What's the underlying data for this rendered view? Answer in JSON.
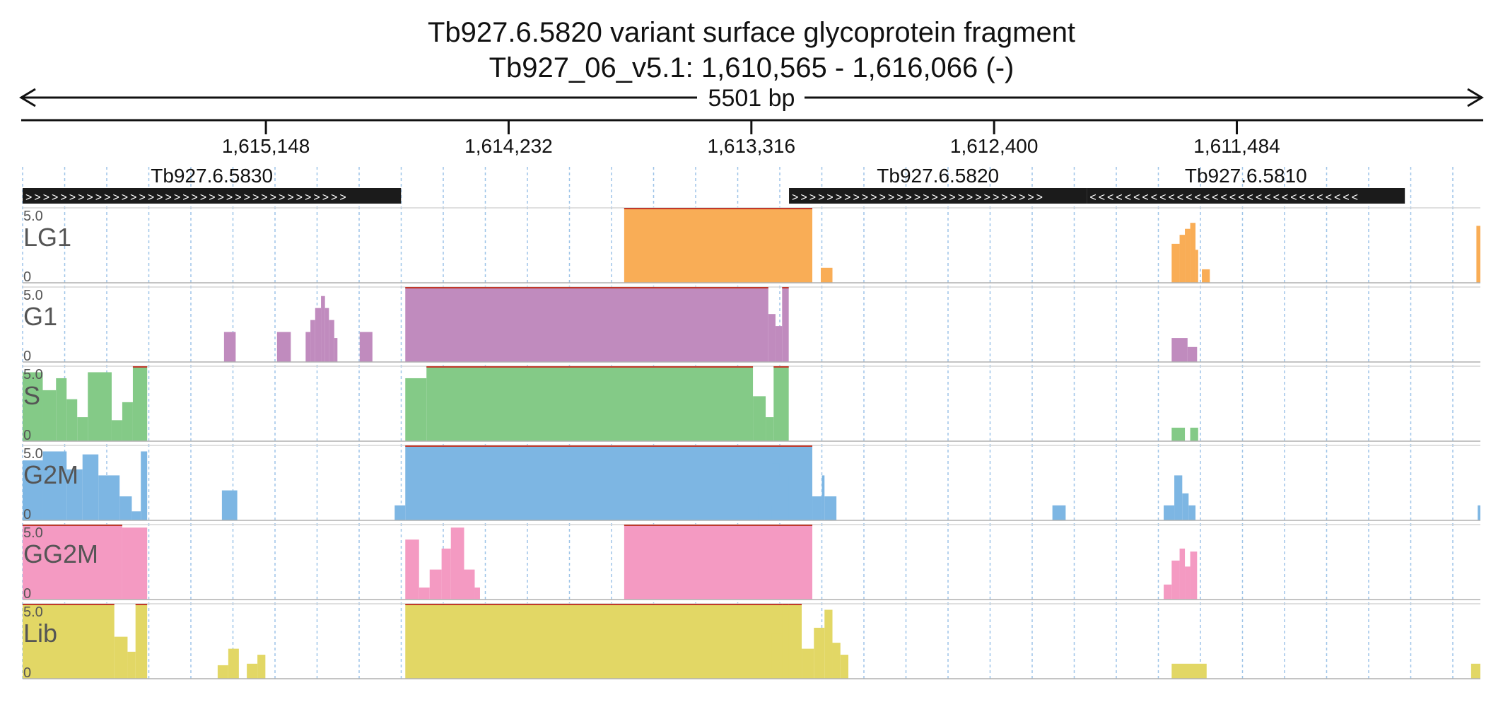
{
  "header": {
    "title": "Tb927.6.5820  variant surface glycoprotein  fragment",
    "location": "Tb927_06_v5.1: 1,610,565 - 1,616,066 (-)",
    "span_label": "5501 bp"
  },
  "chart_data": {
    "type": "area",
    "x_domain": [
      1616066,
      1610565
    ],
    "x_direction": "reverse",
    "ruler_ticks": [
      1615148,
      1614232,
      1613316,
      1612400,
      1611484
    ],
    "ruler_tick_labels": [
      "1,615,148",
      "1,614,232",
      "1,613,316",
      "1,612,400",
      "1,611,484"
    ],
    "grid": true,
    "genes": [
      {
        "name": "Tb927.6.5830",
        "start": 1616066,
        "end": 1614638,
        "strand": "+"
      },
      {
        "name": "Tb927.6.5820",
        "start": 1613174,
        "end": 1612050,
        "strand": "+"
      },
      {
        "name": "Tb927.6.5810",
        "start": 1612050,
        "end": 1610850,
        "strand": "-"
      }
    ],
    "y_range": [
      0,
      5.0
    ],
    "y_max_label": "5.0",
    "y_min_label": "0",
    "tracks": [
      {
        "name": "LG1",
        "color": "#f9ad56",
        "segments": [
          {
            "x": [
              1613796,
              1613086
            ],
            "y": 5.0
          },
          {
            "x": [
              1613054,
              1613010
            ],
            "y": 1.0
          },
          {
            "x": [
              1611730,
              1611700
            ],
            "y": 2.6
          },
          {
            "x": [
              1611700,
              1611680
            ],
            "y": 3.2
          },
          {
            "x": [
              1611680,
              1611660
            ],
            "y": 3.6
          },
          {
            "x": [
              1611660,
              1611640
            ],
            "y": 4.0
          },
          {
            "x": [
              1611640,
              1611630
            ],
            "y": 2.2
          },
          {
            "x": [
              1611616,
              1611586
            ],
            "y": 0.9
          },
          {
            "x": [
              1610580,
              1610565
            ],
            "y": 3.8
          }
        ]
      },
      {
        "name": "G1",
        "color": "#c08bbe",
        "segments": [
          {
            "x": [
              1615306,
              1615262
            ],
            "y": 2.0
          },
          {
            "x": [
              1615106,
              1615054
            ],
            "y": 2.0
          },
          {
            "x": [
              1614998,
              1614980
            ],
            "y": 2.0
          },
          {
            "x": [
              1614980,
              1614962
            ],
            "y": 2.8
          },
          {
            "x": [
              1614962,
              1614940
            ],
            "y": 3.6
          },
          {
            "x": [
              1614940,
              1614925
            ],
            "y": 4.4
          },
          {
            "x": [
              1614925,
              1614910
            ],
            "y": 3.6
          },
          {
            "x": [
              1614910,
              1614890
            ],
            "y": 2.8
          },
          {
            "x": [
              1614890,
              1614878
            ],
            "y": 1.6
          },
          {
            "x": [
              1614794,
              1614746
            ],
            "y": 2.0
          },
          {
            "x": [
              1614622,
              1613252
            ],
            "y": 5.0
          },
          {
            "x": [
              1613252,
              1613225
            ],
            "y": 3.2
          },
          {
            "x": [
              1613225,
              1613200
            ],
            "y": 2.4
          },
          {
            "x": [
              1613200,
              1613175
            ],
            "y": 5.0
          },
          {
            "x": [
              1611730,
              1611670
            ],
            "y": 1.6
          },
          {
            "x": [
              1611670,
              1611634
            ],
            "y": 1.0
          }
        ]
      },
      {
        "name": "S",
        "color": "#84ca87",
        "segments": [
          {
            "x": [
              1616066,
              1615990
            ],
            "y": 4.6
          },
          {
            "x": [
              1615990,
              1615940
            ],
            "y": 3.4
          },
          {
            "x": [
              1615940,
              1615900
            ],
            "y": 4.2
          },
          {
            "x": [
              1615900,
              1615860
            ],
            "y": 2.8
          },
          {
            "x": [
              1615860,
              1615820
            ],
            "y": 1.6
          },
          {
            "x": [
              1615820,
              1615730
            ],
            "y": 4.6
          },
          {
            "x": [
              1615730,
              1615690
            ],
            "y": 1.4
          },
          {
            "x": [
              1615690,
              1615650
            ],
            "y": 2.6
          },
          {
            "x": [
              1615650,
              1615596
            ],
            "y": 5.0
          },
          {
            "x": [
              1614622,
              1614542
            ],
            "y": 4.2
          },
          {
            "x": [
              1614542,
              1613310
            ],
            "y": 5.0
          },
          {
            "x": [
              1613310,
              1613262
            ],
            "y": 3.0
          },
          {
            "x": [
              1613262,
              1613232
            ],
            "y": 1.6
          },
          {
            "x": [
              1613232,
              1613175
            ],
            "y": 5.0
          },
          {
            "x": [
              1611730,
              1611680
            ],
            "y": 0.9
          },
          {
            "x": [
              1611660,
              1611630
            ],
            "y": 0.9
          }
        ]
      },
      {
        "name": "G2M",
        "color": "#7db6e3",
        "segments": [
          {
            "x": [
              1616066,
              1615990
            ],
            "y": 4.0
          },
          {
            "x": [
              1615990,
              1615900
            ],
            "y": 4.6
          },
          {
            "x": [
              1615900,
              1615840
            ],
            "y": 3.4
          },
          {
            "x": [
              1615840,
              1615780
            ],
            "y": 4.4
          },
          {
            "x": [
              1615780,
              1615700
            ],
            "y": 3.0
          },
          {
            "x": [
              1615700,
              1615654
            ],
            "y": 1.6
          },
          {
            "x": [
              1615654,
              1615620
            ],
            "y": 0.6
          },
          {
            "x": [
              1615620,
              1615596
            ],
            "y": 4.6
          },
          {
            "x": [
              1615314,
              1615256
            ],
            "y": 2.0
          },
          {
            "x": [
              1614662,
              1614622
            ],
            "y": 1.0
          },
          {
            "x": [
              1614622,
              1613086
            ],
            "y": 5.0
          },
          {
            "x": [
              1613086,
              1613050
            ],
            "y": 1.6
          },
          {
            "x": [
              1613050,
              1613040
            ],
            "y": 3.0
          },
          {
            "x": [
              1613040,
              1612995
            ],
            "y": 1.6
          },
          {
            "x": [
              1613290,
              1613240
            ],
            "y": 1.0
          },
          {
            "x": [
              1613240,
              1613210
            ],
            "y": 3.8
          },
          {
            "x": [
              1613210,
              1613175
            ],
            "y": 3.0
          },
          {
            "x": [
              1612180,
              1612130
            ],
            "y": 1.0
          },
          {
            "x": [
              1611760,
              1611720
            ],
            "y": 1.0
          },
          {
            "x": [
              1611720,
              1611690
            ],
            "y": 3.0
          },
          {
            "x": [
              1611690,
              1611666
            ],
            "y": 1.8
          },
          {
            "x": [
              1611666,
              1611640
            ],
            "y": 1.0
          },
          {
            "x": [
              1610575,
              1610565
            ],
            "y": 1.0
          }
        ]
      },
      {
        "name": "GG2M",
        "color": "#f49ac2",
        "segments": [
          {
            "x": [
              1616066,
              1615690
            ],
            "y": 5.0
          },
          {
            "x": [
              1615690,
              1615596
            ],
            "y": 4.8
          },
          {
            "x": [
              1614622,
              1614570
            ],
            "y": 4.0
          },
          {
            "x": [
              1614570,
              1614530
            ],
            "y": 0.8
          },
          {
            "x": [
              1614530,
              1614485
            ],
            "y": 2.0
          },
          {
            "x": [
              1614485,
              1614450
            ],
            "y": 3.4
          },
          {
            "x": [
              1614450,
              1614400
            ],
            "y": 4.8
          },
          {
            "x": [
              1614400,
              1614360
            ],
            "y": 2.0
          },
          {
            "x": [
              1614360,
              1614340
            ],
            "y": 0.8
          },
          {
            "x": [
              1614340,
              1613796
            ],
            "y": 0.0
          },
          {
            "x": [
              1613796,
              1613086
            ],
            "y": 5.0
          },
          {
            "x": [
              1611760,
              1611730
            ],
            "y": 1.0
          },
          {
            "x": [
              1611730,
              1611700
            ],
            "y": 2.6
          },
          {
            "x": [
              1611700,
              1611680
            ],
            "y": 3.4
          },
          {
            "x": [
              1611680,
              1611660
            ],
            "y": 2.2
          },
          {
            "x": [
              1611660,
              1611634
            ],
            "y": 3.2
          }
        ]
      },
      {
        "name": "Lib",
        "color": "#e2d765",
        "segments": [
          {
            "x": [
              1616066,
              1615720
            ],
            "y": 5.0
          },
          {
            "x": [
              1615720,
              1615670
            ],
            "y": 2.8
          },
          {
            "x": [
              1615670,
              1615640
            ],
            "y": 1.8
          },
          {
            "x": [
              1615640,
              1615596
            ],
            "y": 5.0
          },
          {
            "x": [
              1615330,
              1615290
            ],
            "y": 0.9
          },
          {
            "x": [
              1615290,
              1615250
            ],
            "y": 2.0
          },
          {
            "x": [
              1615220,
              1615180
            ],
            "y": 1.0
          },
          {
            "x": [
              1615180,
              1615150
            ],
            "y": 1.6
          },
          {
            "x": [
              1614622,
              1613126
            ],
            "y": 5.0
          },
          {
            "x": [
              1613126,
              1613080
            ],
            "y": 2.0
          },
          {
            "x": [
              1613080,
              1613040
            ],
            "y": 3.4
          },
          {
            "x": [
              1613040,
              1613010
            ],
            "y": 4.6
          },
          {
            "x": [
              1613010,
              1612980
            ],
            "y": 2.4
          },
          {
            "x": [
              1612980,
              1612950
            ],
            "y": 1.6
          },
          {
            "x": [
              1613240,
              1613200
            ],
            "y": 3.0
          },
          {
            "x": [
              1613200,
              1613175
            ],
            "y": 5.0
          },
          {
            "x": [
              1611730,
              1611598
            ],
            "y": 1.0
          },
          {
            "x": [
              1610600,
              1610565
            ],
            "y": 1.0
          }
        ]
      }
    ]
  }
}
